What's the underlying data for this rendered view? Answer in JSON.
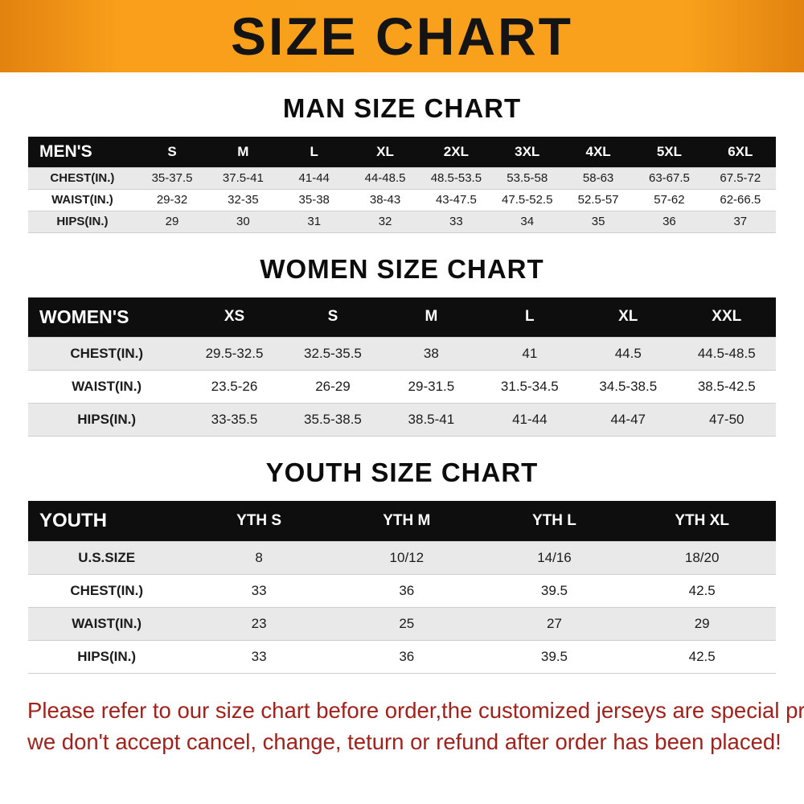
{
  "banner": {
    "title": "SIZE CHART",
    "bg_color": "#f9a11c",
    "text_color": "#141414"
  },
  "sections": [
    {
      "id": "men",
      "heading": "MAN SIZE CHART",
      "table": {
        "header": [
          "MEN'S",
          "S",
          "M",
          "L",
          "XL",
          "2XL",
          "3XL",
          "4XL",
          "5XL",
          "6XL"
        ],
        "rows": [
          [
            "CHEST(IN.)",
            "35-37.5",
            "37.5-41",
            "41-44",
            "44-48.5",
            "48.5-53.5",
            "53.5-58",
            "58-63",
            "63-67.5",
            "67.5-72"
          ],
          [
            "WAIST(IN.)",
            "29-32",
            "32-35",
            "35-38",
            "38-43",
            "43-47.5",
            "47.5-52.5",
            "52.5-57",
            "57-62",
            "62-66.5"
          ],
          [
            "HIPS(IN.)",
            "29",
            "30",
            "31",
            "32",
            "33",
            "34",
            "35",
            "36",
            "37"
          ]
        ]
      }
    },
    {
      "id": "women",
      "heading": "WOMEN SIZE CHART",
      "table": {
        "header": [
          "WOMEN'S",
          "XS",
          "S",
          "M",
          "L",
          "XL",
          "XXL"
        ],
        "rows": [
          [
            "CHEST(IN.)",
            "29.5-32.5",
            "32.5-35.5",
            "38",
            "41",
            "44.5",
            "44.5-48.5"
          ],
          [
            "WAIST(IN.)",
            "23.5-26",
            "26-29",
            "29-31.5",
            "31.5-34.5",
            "34.5-38.5",
            "38.5-42.5"
          ],
          [
            "HIPS(IN.)",
            "33-35.5",
            "35.5-38.5",
            "38.5-41",
            "41-44",
            "44-47",
            "47-50"
          ]
        ]
      }
    },
    {
      "id": "youth",
      "heading": "YOUTH SIZE CHART",
      "table": {
        "header": [
          "YOUTH",
          "YTH S",
          "YTH M",
          "YTH L",
          "YTH XL"
        ],
        "rows": [
          [
            "U.S.SIZE",
            "8",
            "10/12",
            "14/16",
            "18/20"
          ],
          [
            "CHEST(IN.)",
            "33",
            "36",
            "39.5",
            "42.5"
          ],
          [
            "WAIST(IN.)",
            "23",
            "25",
            "27",
            "29"
          ],
          [
            "HIPS(IN.)",
            "33",
            "36",
            "39.5",
            "42.5"
          ]
        ]
      }
    }
  ],
  "footer": {
    "text_color": "#a1211b",
    "lines": [
      "Please refer to our size chart before order,the customized jerseys are special products,",
      "we don't accept cancel, change, teturn or refund after order has been placed!"
    ]
  }
}
